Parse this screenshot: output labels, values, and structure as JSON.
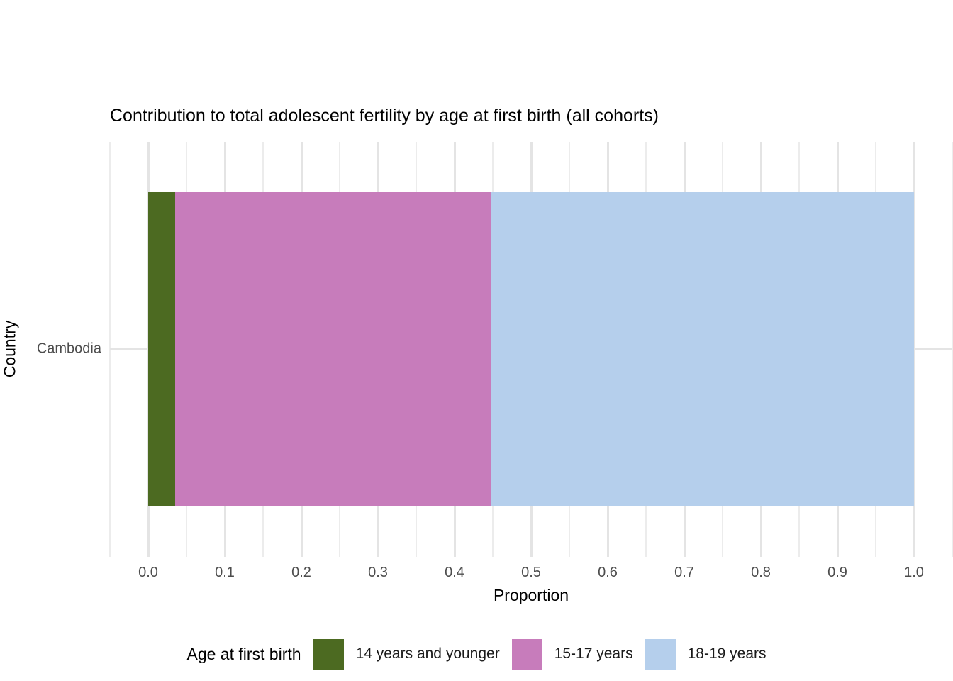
{
  "chart_data": {
    "type": "bar",
    "orientation": "horizontal",
    "stacked": true,
    "title": "Contribution to total adolescent fertility by age at first birth (all cohorts)",
    "xlabel": "Proportion",
    "ylabel": "Country",
    "categories": [
      "Cambodia"
    ],
    "series": [
      {
        "name": "14 years and younger",
        "color": "#4c6a21",
        "values": [
          0.035
        ]
      },
      {
        "name": "15-17 years",
        "color": "#c77cbb",
        "values": [
          0.413
        ]
      },
      {
        "name": "18-19 years",
        "color": "#b5cfec",
        "values": [
          0.552
        ]
      }
    ],
    "xlim": [
      -0.05,
      1.05
    ],
    "x_ticks": [
      0.0,
      0.1,
      0.2,
      0.3,
      0.4,
      0.5,
      0.6,
      0.7,
      0.8,
      0.9,
      1.0
    ],
    "x_tick_labels": [
      "0.0",
      "0.1",
      "0.2",
      "0.3",
      "0.4",
      "0.5",
      "0.6",
      "0.7",
      "0.8",
      "0.9",
      "1.0"
    ],
    "x_minor_step": 0.05,
    "grid": "vertical major + minor, one horizontal major at category",
    "legend_title": "Age at first birth",
    "legend_position": "bottom"
  },
  "colors": {
    "background": "#ffffff",
    "grid_major": "#e4e4e4",
    "grid_minor": "#ececec",
    "tick_label": "#4d4d4d",
    "text": "#000000"
  }
}
